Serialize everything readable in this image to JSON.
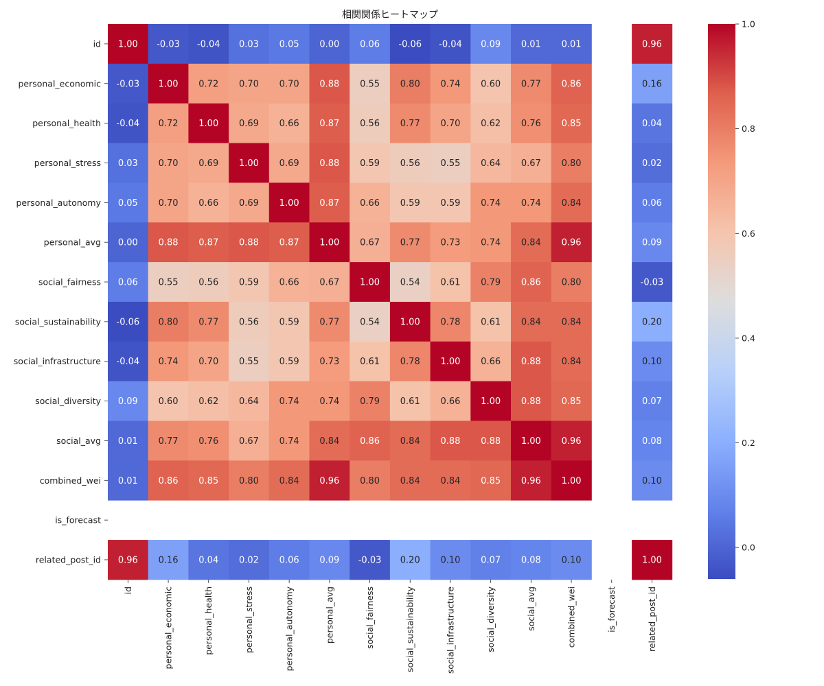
{
  "chart_data": {
    "type": "heatmap",
    "title": "相関関係ヒートマップ",
    "rows": [
      "id",
      "personal_economic",
      "personal_health",
      "personal_stress",
      "personal_autonomy",
      "personal_avg",
      "social_fairness",
      "social_sustainability",
      "social_infrastructure",
      "social_diversity",
      "social_avg",
      "combined_wei",
      "is_forecast",
      "related_post_id"
    ],
    "columns": [
      "id",
      "personal_economic",
      "personal_health",
      "personal_stress",
      "personal_autonomy",
      "personal_avg",
      "social_fairness",
      "social_sustainability",
      "social_infrastructure",
      "social_diversity",
      "social_avg",
      "combined_wei",
      "is_forecast",
      "related_post_id"
    ],
    "values": [
      [
        1.0,
        -0.03,
        -0.04,
        0.03,
        0.05,
        0.0,
        0.06,
        -0.06,
        -0.04,
        0.09,
        0.01,
        0.01,
        null,
        0.96
      ],
      [
        -0.03,
        1.0,
        0.72,
        0.7,
        0.7,
        0.88,
        0.55,
        0.8,
        0.74,
        0.6,
        0.77,
        0.86,
        null,
        0.16
      ],
      [
        -0.04,
        0.72,
        1.0,
        0.69,
        0.66,
        0.87,
        0.56,
        0.77,
        0.7,
        0.62,
        0.76,
        0.85,
        null,
        0.04
      ],
      [
        0.03,
        0.7,
        0.69,
        1.0,
        0.69,
        0.88,
        0.59,
        0.56,
        0.55,
        0.64,
        0.67,
        0.8,
        null,
        0.02
      ],
      [
        0.05,
        0.7,
        0.66,
        0.69,
        1.0,
        0.87,
        0.66,
        0.59,
        0.59,
        0.74,
        0.74,
        0.84,
        null,
        0.06
      ],
      [
        0.0,
        0.88,
        0.87,
        0.88,
        0.87,
        1.0,
        0.67,
        0.77,
        0.73,
        0.74,
        0.84,
        0.96,
        null,
        0.09
      ],
      [
        0.06,
        0.55,
        0.56,
        0.59,
        0.66,
        0.67,
        1.0,
        0.54,
        0.61,
        0.79,
        0.86,
        0.8,
        null,
        -0.03
      ],
      [
        -0.06,
        0.8,
        0.77,
        0.56,
        0.59,
        0.77,
        0.54,
        1.0,
        0.78,
        0.61,
        0.84,
        0.84,
        null,
        0.2
      ],
      [
        -0.04,
        0.74,
        0.7,
        0.55,
        0.59,
        0.73,
        0.61,
        0.78,
        1.0,
        0.66,
        0.88,
        0.84,
        null,
        0.1
      ],
      [
        0.09,
        0.6,
        0.62,
        0.64,
        0.74,
        0.74,
        0.79,
        0.61,
        0.66,
        1.0,
        0.88,
        0.85,
        null,
        0.07
      ],
      [
        0.01,
        0.77,
        0.76,
        0.67,
        0.74,
        0.84,
        0.86,
        0.84,
        0.88,
        0.88,
        1.0,
        0.96,
        null,
        0.08
      ],
      [
        0.01,
        0.86,
        0.85,
        0.8,
        0.84,
        0.96,
        0.8,
        0.84,
        0.84,
        0.85,
        0.96,
        1.0,
        null,
        0.1
      ],
      [
        null,
        null,
        null,
        null,
        null,
        null,
        null,
        null,
        null,
        null,
        null,
        null,
        null,
        null
      ],
      [
        0.96,
        0.16,
        0.04,
        0.02,
        0.06,
        0.09,
        -0.03,
        0.2,
        0.1,
        0.07,
        0.08,
        0.1,
        null,
        1.0
      ]
    ],
    "colormap": "coolwarm",
    "colorbar": {
      "min": -0.06,
      "max": 1.0,
      "ticks": [
        "0.0",
        "0.2",
        "0.4",
        "0.6",
        "0.8",
        "1.0"
      ],
      "tick_values": [
        0.0,
        0.2,
        0.4,
        0.6,
        0.8,
        1.0
      ]
    },
    "value_format": "2 decimals",
    "grid": false
  }
}
